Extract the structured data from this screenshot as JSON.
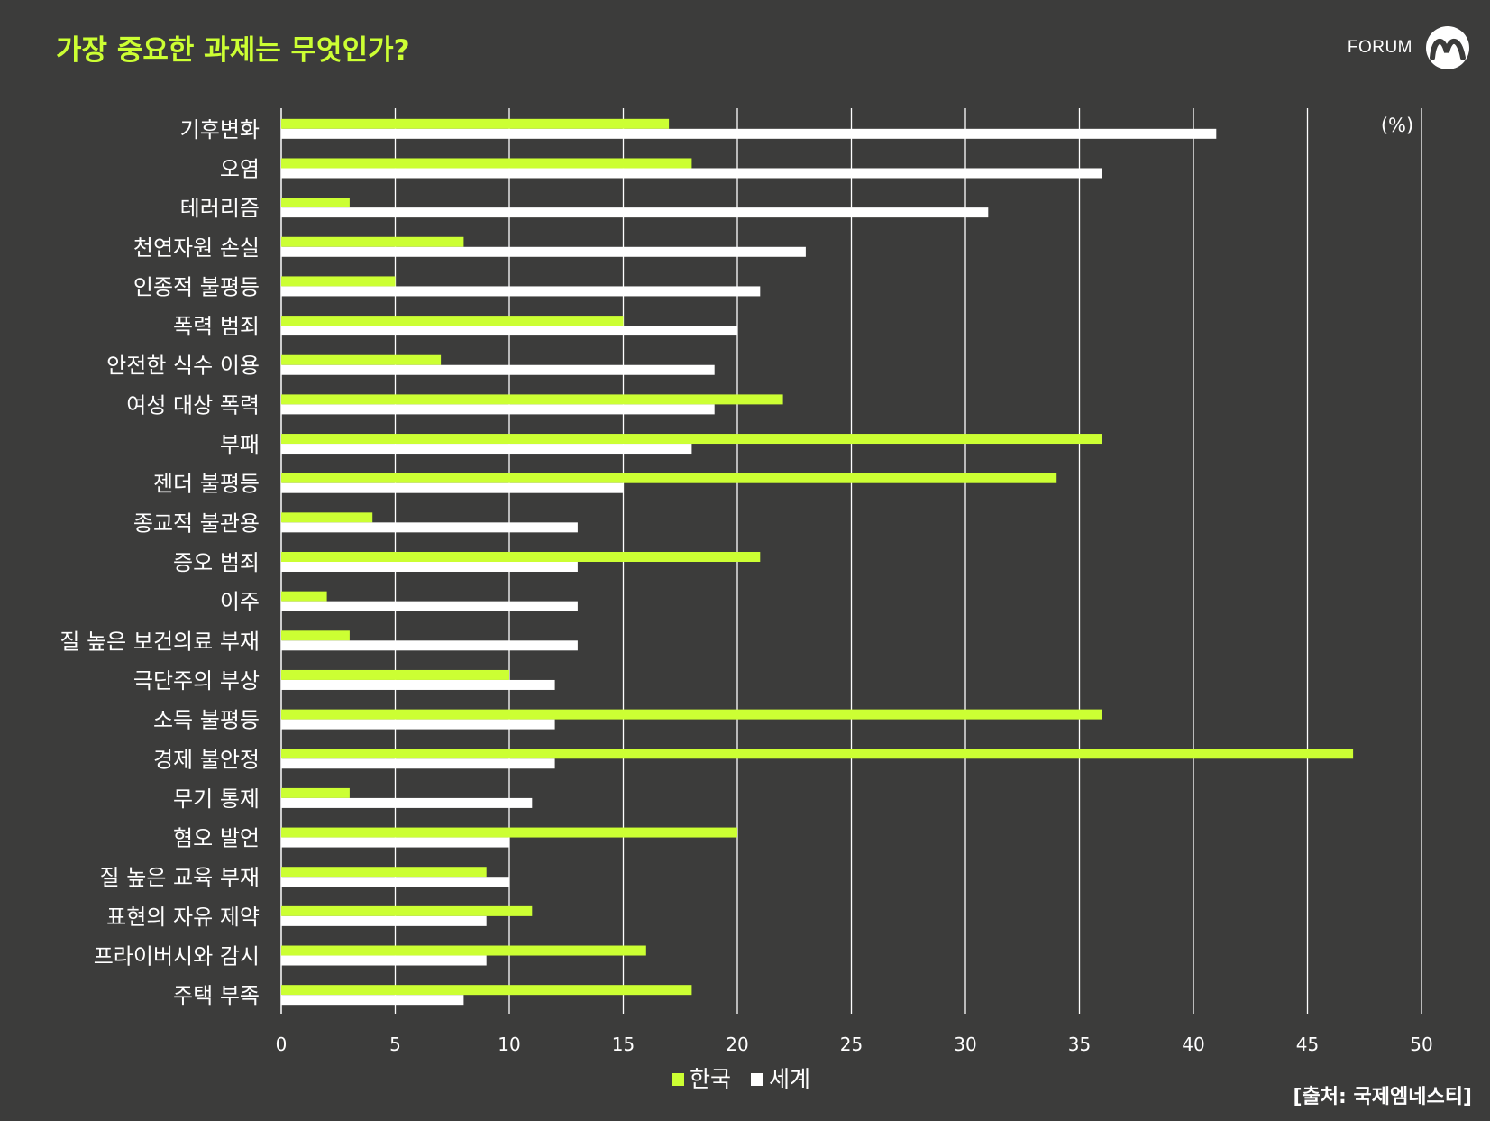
{
  "header": {
    "title": "가장 중요한 과제는 무엇인가?",
    "brand": "FORUM"
  },
  "source": "[출처: 국제엠네스티]",
  "colors": {
    "background": "#3c3c3b",
    "korea": "#ccff33",
    "world": "#ffffff",
    "title": "#ccff33"
  },
  "chart_data": {
    "type": "bar",
    "orientation": "horizontal",
    "unit_label": "(%)",
    "categories": [
      "기후변화",
      "오염",
      "테러리즘",
      "천연자원 손실",
      "인종적 불평등",
      "폭력 범죄",
      "안전한 식수 이용",
      "여성 대상 폭력",
      "부패",
      "젠더 불평등",
      "종교적 불관용",
      "증오 범죄",
      "이주",
      "질 높은 보건의료 부재",
      "극단주의 부상",
      "소득 불평등",
      "경제 불안정",
      "무기 통제",
      "혐오 발언",
      "질 높은 교육 부재",
      "표현의 자유 제약",
      "프라이버시와 감시",
      "주택 부족"
    ],
    "series": [
      {
        "name": "한국",
        "values": [
          17,
          18,
          3,
          8,
          5,
          15,
          7,
          22,
          36,
          34,
          4,
          21,
          2,
          3,
          10,
          36,
          47,
          3,
          20,
          9,
          11,
          16,
          18
        ]
      },
      {
        "name": "세계",
        "values": [
          41,
          36,
          31,
          23,
          21,
          20,
          19,
          19,
          18,
          15,
          13,
          13,
          13,
          13,
          12,
          12,
          12,
          11,
          10,
          10,
          9,
          9,
          8
        ]
      }
    ],
    "xlim": [
      0,
      50
    ],
    "xticks": [
      0,
      5,
      10,
      15,
      20,
      25,
      30,
      35,
      40,
      45,
      50
    ],
    "grid": true,
    "legend_position": "bottom-center"
  }
}
